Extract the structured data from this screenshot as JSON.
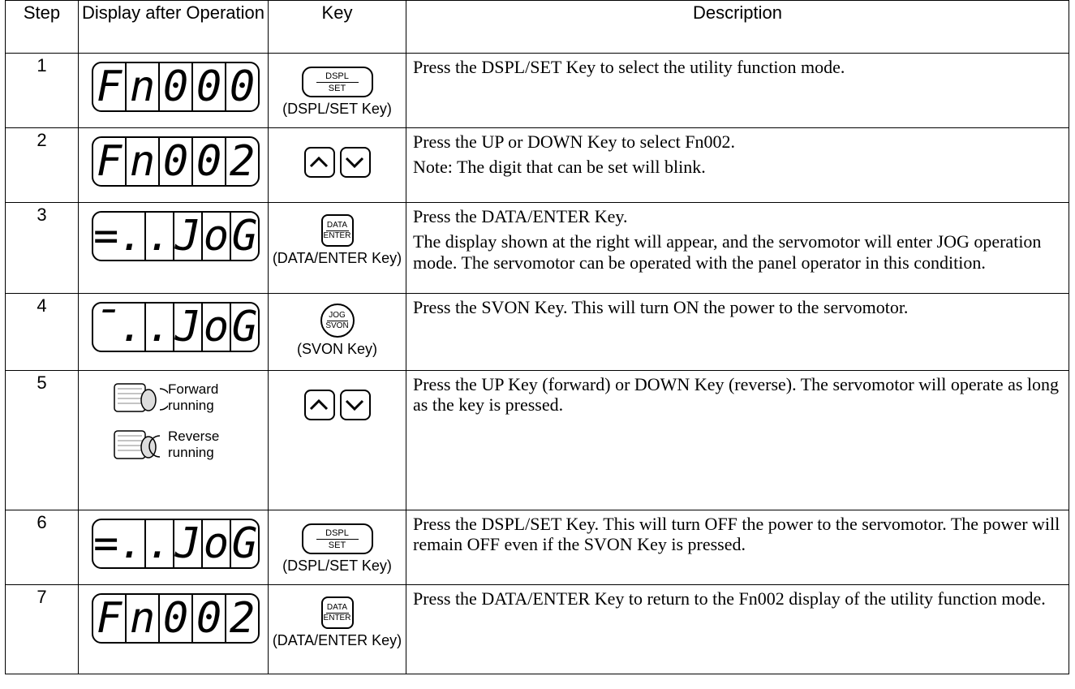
{
  "header": [
    "Step",
    "Display after Operation",
    "Key",
    "Description"
  ],
  "rows": [
    {
      "step": "1",
      "display": [
        "F",
        "n",
        "0",
        "0",
        "0"
      ],
      "key": {
        "shape": "bar",
        "top": "DSPL",
        "bottom": "SET",
        "caption": "(DSPL/SET Key)"
      },
      "description": [
        "Press the DSPL/SET Key to select the utility function mode."
      ]
    },
    {
      "step": "2",
      "display": [
        "F",
        "n",
        "0",
        "0",
        "2"
      ],
      "key": {
        "shape": "arrows"
      },
      "description": [
        "Press the UP or DOWN Key to select Fn002.",
        "Note: The digit that can be set will blink."
      ]
    },
    {
      "step": "3",
      "display": [
        "=.",
        ".",
        "J",
        "o",
        "G"
      ],
      "key": {
        "shape": "square",
        "top": "DATA",
        "bottom": "ENTER",
        "caption": "(DATA/ENTER Key)"
      },
      "description": [
        "Press the DATA/ENTER Key.",
        "The display shown at the right will appear, and the servomotor will enter JOG operation mode. The servomotor can be operated with the panel operator in this condition."
      ]
    },
    {
      "step": "4",
      "display": [
        "¯.",
        ".",
        "J",
        "o",
        "G"
      ],
      "key": {
        "shape": "round",
        "top": "JOG",
        "bottom": "SVON",
        "caption": "(SVON Key)"
      },
      "description": [
        "Press the SVON Key. This will turn ON the power to the servomotor."
      ]
    },
    {
      "step": "5",
      "motor": [
        "Forward running",
        "Reverse running"
      ],
      "key": {
        "shape": "arrows"
      },
      "description": [
        "Press the UP Key (forward) or DOWN Key (reverse). The servomotor will operate as long as the key is pressed."
      ]
    },
    {
      "step": "6",
      "display": [
        "=.",
        ".",
        "J",
        "o",
        "G"
      ],
      "key": {
        "shape": "bar",
        "top": "DSPL",
        "bottom": "SET",
        "caption": "(DSPL/SET Key)"
      },
      "description": [
        "Press the DSPL/SET Key. This will turn OFF the power to the servomotor. The power will remain OFF even if the SVON Key is pressed."
      ]
    },
    {
      "step": "7",
      "display": [
        "F",
        "n",
        "0",
        "0",
        "2"
      ],
      "key": {
        "shape": "square",
        "top": "DATA",
        "bottom": "ENTER",
        "caption": "(DATA/ENTER Key)"
      },
      "description": [
        "Press the DATA/ENTER Key to return to the Fn002 display of the utility function mode."
      ]
    }
  ]
}
